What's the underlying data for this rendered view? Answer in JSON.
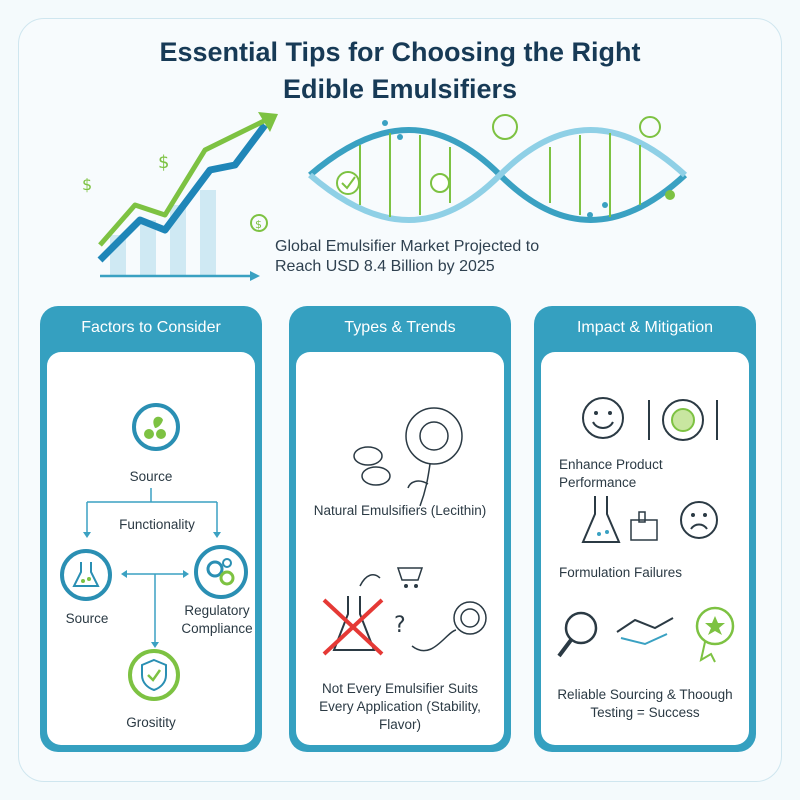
{
  "header": {
    "title_line1": "Essential Tips for Choosing the Right",
    "title_line2": "Edible Emulsifiers",
    "tagline": "Global Emulsifier Market Projected to Reach USD 8.4 Billion by 2025"
  },
  "panels": [
    {
      "title": "Factors to Consider",
      "nodes": {
        "top": "Source",
        "mid": "Functionality",
        "left": "Source",
        "right": "Regulatory Compliance",
        "bottom": "Grositity"
      }
    },
    {
      "title": "Types & Trends",
      "items": [
        "Natural Emulsifiers (Lecithin)",
        "Not Every Emulsifier Suits Every Application (Stability, Flavor)"
      ]
    },
    {
      "title": "Impact & Mitigation",
      "items": [
        "Enhance Product Performance",
        "Formulation Failures",
        "Reliable Sourcing & Thoough Testing = Success"
      ]
    }
  ],
  "colors": {
    "primary": "#35a0c0",
    "accent_green": "#7dc242",
    "error_red": "#e53935",
    "title": "#173a56"
  }
}
